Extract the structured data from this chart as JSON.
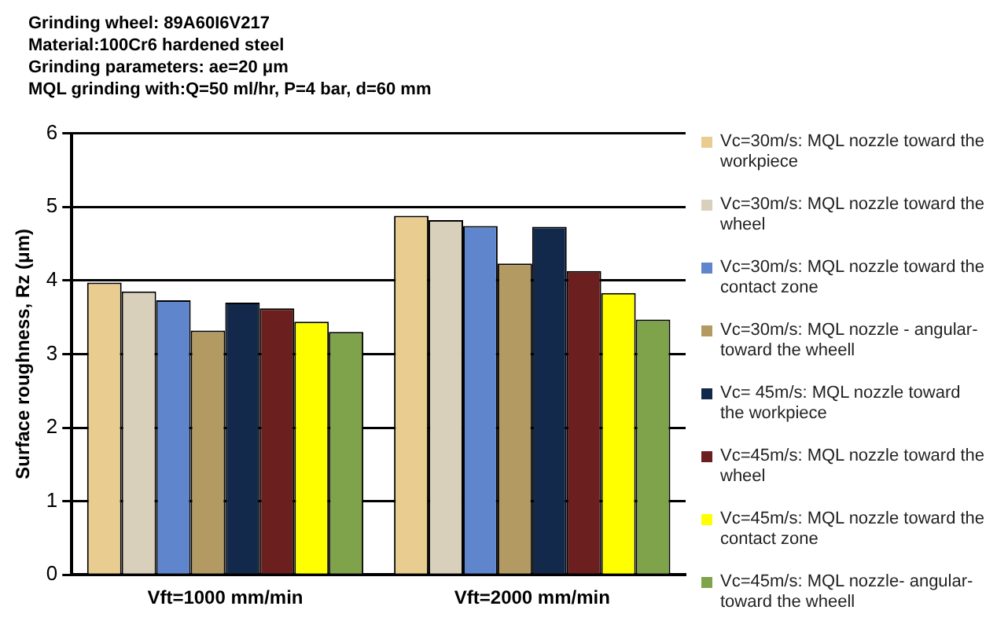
{
  "chart_data": {
    "type": "bar",
    "ylabel": "Surface roughness, Rz (μm)",
    "annotations": [
      "Grinding wheel: 89A60I6V217",
      "Material:100Cr6 hardened steel",
      "Grinding parameters: ae=20 μm",
      "MQL grinding with:Q=50 ml/hr, P=4 bar, d=60 mm"
    ],
    "categories": [
      "Vft=1000 mm/min",
      "Vft=2000 mm/min"
    ],
    "series": [
      {
        "name": "Vc=30m/s: MQL nozzle toward the workpiece",
        "color": "#e8cc90",
        "values": [
          3.97,
          4.88
        ]
      },
      {
        "name": "Vc=30m/s: MQL nozzle toward the wheel",
        "color": "#d9d0bc",
        "values": [
          3.85,
          4.82
        ]
      },
      {
        "name": "Vc=30m/s: MQL nozzle toward the contact zone",
        "color": "#5f86cc",
        "values": [
          3.73,
          4.74
        ]
      },
      {
        "name": "Vc=30m/s: MQL nozzle - angular-toward the wheell",
        "color": "#b39a63",
        "values": [
          3.32,
          4.23
        ]
      },
      {
        "name": "Vc= 45m/s: MQL nozzle toward the workpiece",
        "color": "#13294b",
        "values": [
          3.7,
          4.73
        ]
      },
      {
        "name": "Vc=45m/s: MQL nozzle toward the wheel",
        "color": "#6b1f1f",
        "values": [
          3.62,
          4.13
        ]
      },
      {
        "name": "Vc=45m/s: MQL nozzle toward the contact zone",
        "color": "#ffff00",
        "values": [
          3.44,
          3.83
        ]
      },
      {
        "name": "Vc=45m/s: MQL nozzle- angular-toward the wheell",
        "color": "#7fa34a",
        "values": [
          3.3,
          3.47
        ]
      }
    ],
    "ylim": [
      0,
      6
    ],
    "yticks": [
      0,
      1,
      2,
      3,
      4,
      5,
      6
    ],
    "grid": "y",
    "legend": "right"
  }
}
